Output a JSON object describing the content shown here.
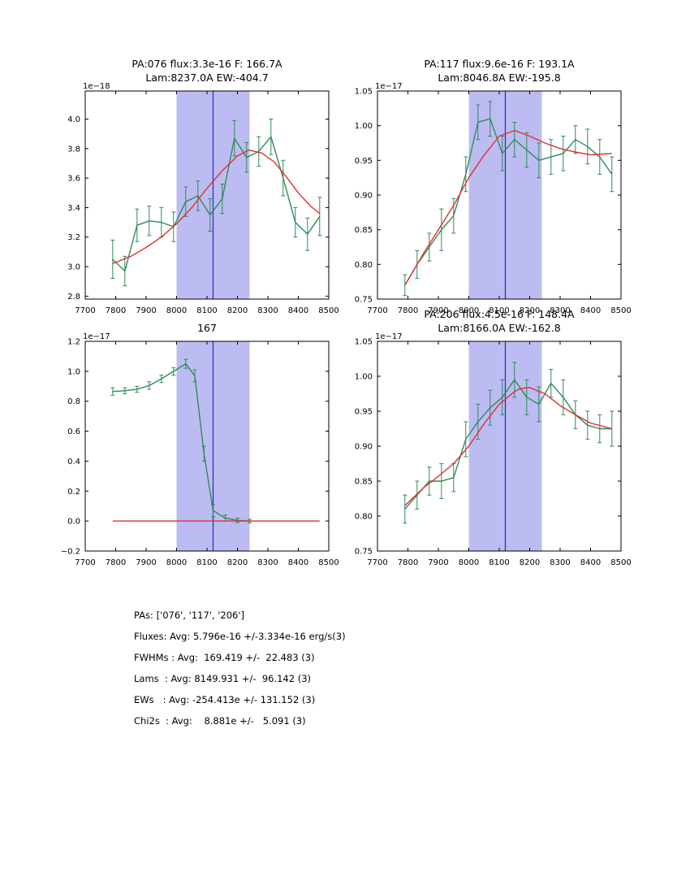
{
  "colors": {
    "band": "#bcbcf2",
    "vline": "#3030cc",
    "data": "#2e8b57",
    "fit": "#e03030"
  },
  "summary": {
    "lines": [
      "PAs: ['076', '117', '206']",
      "Fluxes: Avg: 5.796e-16 +/-3.334e-16 erg/s(3)",
      "FWHMs : Avg:  169.419 +/-  22.483 (3)",
      "Lams  : Avg: 8149.931 +/-  96.142 (3)",
      "EWs   : Avg: -254.413e +/- 131.152 (3)",
      "Chi2s  : Avg:    8.881e +/-   5.091 (3)"
    ]
  },
  "chart_data": [
    {
      "type": "line",
      "title_lines": [
        "PA:076 flux:3.3e-16 F: 166.7A",
        "Lam:8237.0A EW:-404.7"
      ],
      "offset_label": "1e−18",
      "xlabel": "",
      "ylabel": "",
      "xlim": [
        7700,
        8500
      ],
      "ylim": [
        2.78,
        4.19
      ],
      "xticks": [
        7700,
        7800,
        7900,
        8000,
        8100,
        8200,
        8300,
        8400,
        8500
      ],
      "yticks": [
        2.8,
        3.0,
        3.2,
        3.4,
        3.6,
        3.8,
        4.0
      ],
      "ytick_labels": [
        "2.8",
        "3.0",
        "3.2",
        "3.4",
        "3.6",
        "3.8",
        "4.0"
      ],
      "band": [
        8000,
        8240
      ],
      "vline": 8120,
      "legend": "off",
      "grid": "off",
      "series": [
        {
          "name": "spectrum",
          "color": "#2e8b57",
          "x": [
            7790,
            7830,
            7870,
            7910,
            7950,
            7990,
            8030,
            8070,
            8110,
            8150,
            8190,
            8230,
            8270,
            8310,
            8350,
            8390,
            8430,
            8470
          ],
          "y": [
            3.05,
            2.97,
            3.28,
            3.31,
            3.3,
            3.27,
            3.44,
            3.48,
            3.35,
            3.46,
            3.87,
            3.74,
            3.78,
            3.88,
            3.6,
            3.3,
            3.22,
            3.34
          ],
          "yerr": [
            0.13,
            0.1,
            0.11,
            0.1,
            0.1,
            0.1,
            0.1,
            0.1,
            0.11,
            0.1,
            0.12,
            0.1,
            0.1,
            0.12,
            0.12,
            0.1,
            0.11,
            0.13
          ]
        },
        {
          "name": "gaussian-fit",
          "color": "#e03030",
          "x": [
            7790,
            7850,
            7900,
            7950,
            8000,
            8050,
            8100,
            8150,
            8200,
            8237,
            8280,
            8320,
            8360,
            8400,
            8440,
            8470
          ],
          "y": [
            3.02,
            3.07,
            3.13,
            3.2,
            3.29,
            3.4,
            3.53,
            3.65,
            3.75,
            3.79,
            3.77,
            3.71,
            3.61,
            3.5,
            3.41,
            3.36
          ]
        }
      ]
    },
    {
      "type": "line",
      "title_lines": [
        "PA:117 flux:9.6e-16 F: 193.1A",
        "Lam:8046.8A EW:-195.8"
      ],
      "offset_label": "1e−17",
      "xlabel": "",
      "ylabel": "",
      "xlim": [
        7700,
        8500
      ],
      "ylim": [
        0.75,
        1.05
      ],
      "xticks": [
        7700,
        7800,
        7900,
        8000,
        8100,
        8200,
        8300,
        8400,
        8500
      ],
      "yticks": [
        0.75,
        0.8,
        0.85,
        0.9,
        0.95,
        1.0,
        1.05
      ],
      "ytick_labels": [
        "0.75",
        "0.80",
        "0.85",
        "0.90",
        "0.95",
        "1.00",
        "1.05"
      ],
      "band": [
        8000,
        8240
      ],
      "vline": 8120,
      "legend": "off",
      "grid": "off",
      "series": [
        {
          "name": "spectrum",
          "color": "#2e8b57",
          "x": [
            7790,
            7830,
            7870,
            7910,
            7950,
            7990,
            8030,
            8070,
            8110,
            8150,
            8190,
            8230,
            8270,
            8310,
            8350,
            8390,
            8430,
            8470
          ],
          "y": [
            0.77,
            0.8,
            0.825,
            0.85,
            0.87,
            0.93,
            1.005,
            1.01,
            0.96,
            0.98,
            0.965,
            0.95,
            0.955,
            0.96,
            0.98,
            0.97,
            0.955,
            0.93
          ],
          "yerr": [
            0.015,
            0.02,
            0.02,
            0.03,
            0.025,
            0.025,
            0.025,
            0.025,
            0.025,
            0.025,
            0.025,
            0.025,
            0.025,
            0.025,
            0.02,
            0.025,
            0.025,
            0.025
          ]
        },
        {
          "name": "gaussian-fit",
          "color": "#e03030",
          "x": [
            7790,
            7850,
            7900,
            7950,
            8000,
            8046,
            8100,
            8150,
            8200,
            8250,
            8300,
            8350,
            8400,
            8470
          ],
          "y": [
            0.77,
            0.815,
            0.85,
            0.885,
            0.925,
            0.955,
            0.985,
            0.993,
            0.985,
            0.975,
            0.967,
            0.962,
            0.958,
            0.96
          ]
        }
      ]
    },
    {
      "type": "line",
      "title_lines": [
        "167"
      ],
      "offset_label": "1e−17",
      "xlabel": "",
      "ylabel": "",
      "xlim": [
        7700,
        8500
      ],
      "ylim": [
        -0.2,
        1.2
      ],
      "xticks": [
        7700,
        7800,
        7900,
        8000,
        8100,
        8200,
        8300,
        8400,
        8500
      ],
      "yticks": [
        -0.2,
        0.0,
        0.2,
        0.4,
        0.6,
        0.8,
        1.0,
        1.2
      ],
      "ytick_labels": [
        "−0.2",
        "0.0",
        "0.2",
        "0.4",
        "0.6",
        "0.8",
        "1.0",
        "1.2"
      ],
      "band": [
        8000,
        8240
      ],
      "vline": 8120,
      "legend": "off",
      "grid": "off",
      "series": [
        {
          "name": "spectrum",
          "color": "#2e8b57",
          "x": [
            7790,
            7830,
            7870,
            7910,
            7950,
            7990,
            8030,
            8060,
            8090,
            8120,
            8160,
            8200,
            8240
          ],
          "y": [
            0.865,
            0.87,
            0.88,
            0.905,
            0.95,
            1.0,
            1.05,
            0.97,
            0.45,
            0.07,
            0.02,
            0.005,
            0.0
          ],
          "yerr": [
            0.025,
            0.02,
            0.02,
            0.025,
            0.025,
            0.025,
            0.03,
            0.04,
            0.05,
            0.04,
            0.02,
            0.015,
            0.012
          ]
        },
        {
          "name": "gaussian-fit",
          "color": "#e03030",
          "x": [
            7790,
            8470
          ],
          "y": [
            0.0,
            0.0
          ]
        }
      ]
    },
    {
      "type": "line",
      "title_lines": [
        "PA:206 flux:4.5e-16 F: 148.4A",
        "Lam:8166.0A EW:-162.8"
      ],
      "offset_label": "1e−17",
      "xlabel": "",
      "ylabel": "",
      "xlim": [
        7700,
        8500
      ],
      "ylim": [
        0.75,
        1.05
      ],
      "xticks": [
        7700,
        7800,
        7900,
        8000,
        8100,
        8200,
        8300,
        8400,
        8500
      ],
      "yticks": [
        0.75,
        0.8,
        0.85,
        0.9,
        0.95,
        1.0,
        1.05
      ],
      "ytick_labels": [
        "0.75",
        "0.80",
        "0.85",
        "0.90",
        "0.95",
        "1.00",
        "1.05"
      ],
      "band": [
        8000,
        8240
      ],
      "vline": 8120,
      "legend": "off",
      "grid": "off",
      "series": [
        {
          "name": "spectrum",
          "color": "#2e8b57",
          "x": [
            7790,
            7830,
            7870,
            7910,
            7950,
            7990,
            8030,
            8070,
            8110,
            8150,
            8190,
            8230,
            8270,
            8310,
            8350,
            8390,
            8430,
            8470
          ],
          "y": [
            0.81,
            0.83,
            0.85,
            0.85,
            0.855,
            0.91,
            0.935,
            0.955,
            0.97,
            0.995,
            0.97,
            0.96,
            0.99,
            0.97,
            0.945,
            0.93,
            0.925,
            0.925
          ],
          "yerr": [
            0.02,
            0.02,
            0.02,
            0.025,
            0.02,
            0.025,
            0.025,
            0.025,
            0.025,
            0.025,
            0.025,
            0.025,
            0.02,
            0.025,
            0.02,
            0.02,
            0.02,
            0.025
          ]
        },
        {
          "name": "gaussian-fit",
          "color": "#e03030",
          "x": [
            7790,
            7850,
            7900,
            7950,
            8000,
            8050,
            8100,
            8150,
            8166,
            8200,
            8250,
            8300,
            8350,
            8400,
            8470
          ],
          "y": [
            0.815,
            0.84,
            0.857,
            0.875,
            0.9,
            0.932,
            0.96,
            0.978,
            0.982,
            0.984,
            0.975,
            0.958,
            0.945,
            0.933,
            0.925
          ]
        }
      ]
    }
  ]
}
